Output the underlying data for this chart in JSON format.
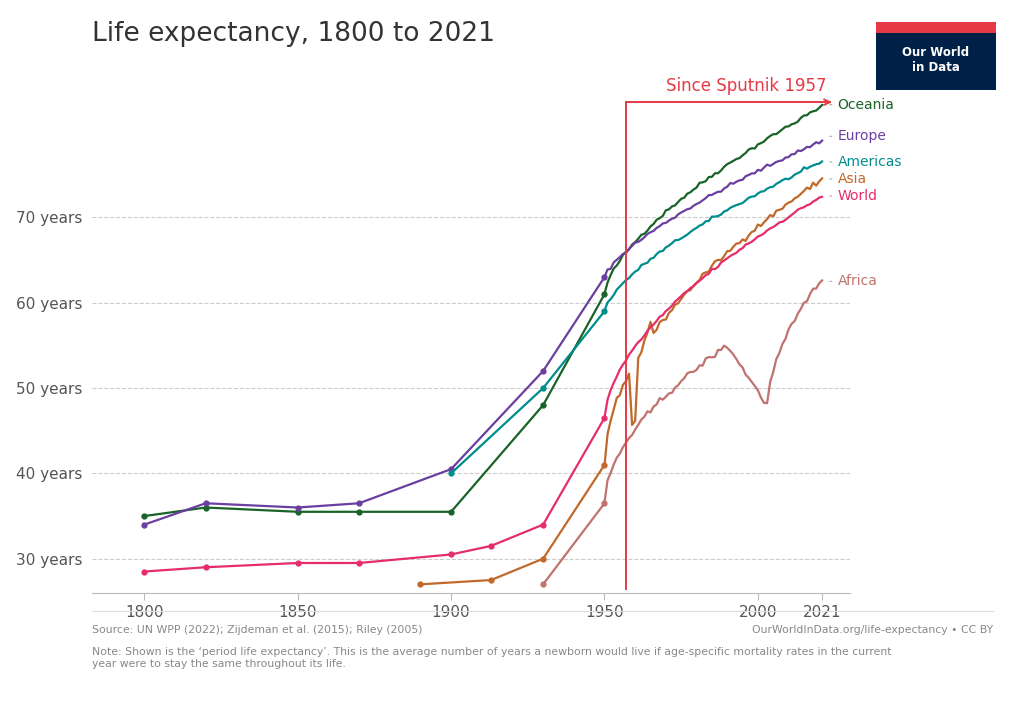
{
  "title": "Life expectancy, 1800 to 2021",
  "source_text": "Source: UN WPP (2022); Zijdeman et al. (2015); Riley (2005)",
  "url_text": "OurWorldInData.org/life-expectancy • CC BY",
  "note_text": "Note: Shown is the ‘period life expectancy’. This is the average number of years a newborn would live if age-specific mortality rates in the current\nyear were to stay the same throughout its life.",
  "sputnik_label": "Since Sputnik 1957",
  "sputnik_year": 1957,
  "xlim": [
    1783,
    2030
  ],
  "ylim": [
    26,
    87
  ],
  "yticks": [
    30,
    40,
    50,
    60,
    70
  ],
  "ytick_labels": [
    "30 years",
    "40 years",
    "50 years",
    "60 years",
    "70 years"
  ],
  "xticks": [
    1800,
    1850,
    1900,
    1950,
    2000,
    2021
  ],
  "colors": {
    "Oceania": "#1a6328",
    "Europe": "#6B3FA0",
    "Americas": "#008D8D",
    "Asia": "#C0692A",
    "World": "#E52D6A",
    "Africa": "#C0726E"
  },
  "logo_bg": "#002147",
  "logo_red": "#e63946",
  "sputnik_color": "#e63946",
  "grid_color": "#cccccc",
  "spine_color": "#bbbbbb",
  "text_color": "#333333",
  "footer_color": "#888888"
}
